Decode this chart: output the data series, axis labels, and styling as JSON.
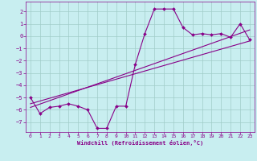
{
  "xlabel": "Windchill (Refroidissement éolien,°C)",
  "background_color": "#c8eef0",
  "grid_color": "#a0ccc8",
  "line_color": "#880088",
  "spine_color": "#880088",
  "xlim": [
    -0.5,
    23.5
  ],
  "ylim": [
    -7.8,
    2.8
  ],
  "yticks": [
    2,
    1,
    0,
    -1,
    -2,
    -3,
    -4,
    -5,
    -6,
    -7
  ],
  "xticks": [
    0,
    1,
    2,
    3,
    4,
    5,
    6,
    7,
    8,
    9,
    10,
    11,
    12,
    13,
    14,
    15,
    16,
    17,
    18,
    19,
    20,
    21,
    22,
    23
  ],
  "series1_x": [
    0,
    1,
    2,
    3,
    4,
    5,
    6,
    7,
    8,
    9,
    10,
    11,
    12,
    13,
    14,
    15,
    16,
    17,
    18,
    19,
    20,
    21,
    22,
    23
  ],
  "series1_y": [
    -5.0,
    -6.3,
    -5.8,
    -5.7,
    -5.5,
    -5.7,
    -6.0,
    -7.5,
    -7.5,
    -5.7,
    -5.7,
    -2.3,
    0.2,
    2.2,
    2.2,
    2.2,
    0.7,
    0.1,
    0.2,
    0.1,
    0.2,
    -0.1,
    1.0,
    -0.3
  ],
  "series2_x": [
    0,
    23
  ],
  "series2_y": [
    -5.5,
    -0.4
  ],
  "series3_x": [
    0,
    23
  ],
  "series3_y": [
    -5.8,
    0.5
  ]
}
